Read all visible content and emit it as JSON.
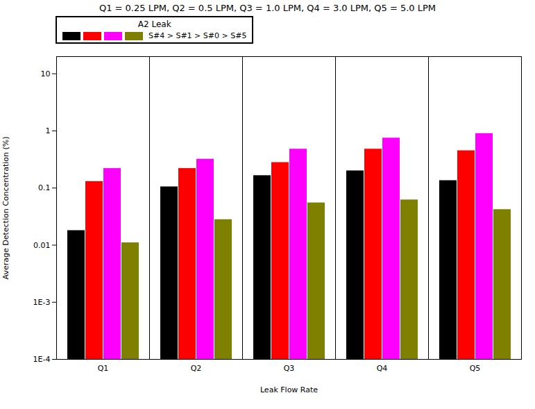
{
  "chart_data": {
    "type": "bar",
    "title": "Q1 = 0.25 LPM, Q2 = 0.5  LPM, Q3 = 1.0  LPM, Q4 = 3.0  LPM, Q5 = 5.0  LPM",
    "xlabel": "Leak Flow Rate",
    "ylabel": "Average Detection Concentration (%)",
    "legend_title": "A2 Leak",
    "legend_label": "S#4 > S#1 > S#0 > S#5",
    "categories": [
      "Q1",
      "Q2",
      "Q3",
      "Q4",
      "Q5"
    ],
    "series": [
      {
        "color": "#000000",
        "values": [
          0.018,
          0.105,
          0.165,
          0.2,
          0.135
        ]
      },
      {
        "color": "#FF0000",
        "values": [
          0.13,
          0.22,
          0.28,
          0.48,
          0.45
        ]
      },
      {
        "color": "#FF00FF",
        "values": [
          0.22,
          0.32,
          0.48,
          0.75,
          0.9
        ]
      },
      {
        "color": "#808000",
        "values": [
          0.011,
          0.028,
          0.055,
          0.062,
          0.042
        ]
      }
    ],
    "log": "y",
    "ylim": [
      0.0001,
      20
    ],
    "yticks": [
      {
        "value": 0.0001,
        "label": "1E-4"
      },
      {
        "value": 0.001,
        "label": "1E-3"
      },
      0.01,
      0.1,
      1,
      10
    ],
    "grid": false,
    "legend": "upper left"
  }
}
